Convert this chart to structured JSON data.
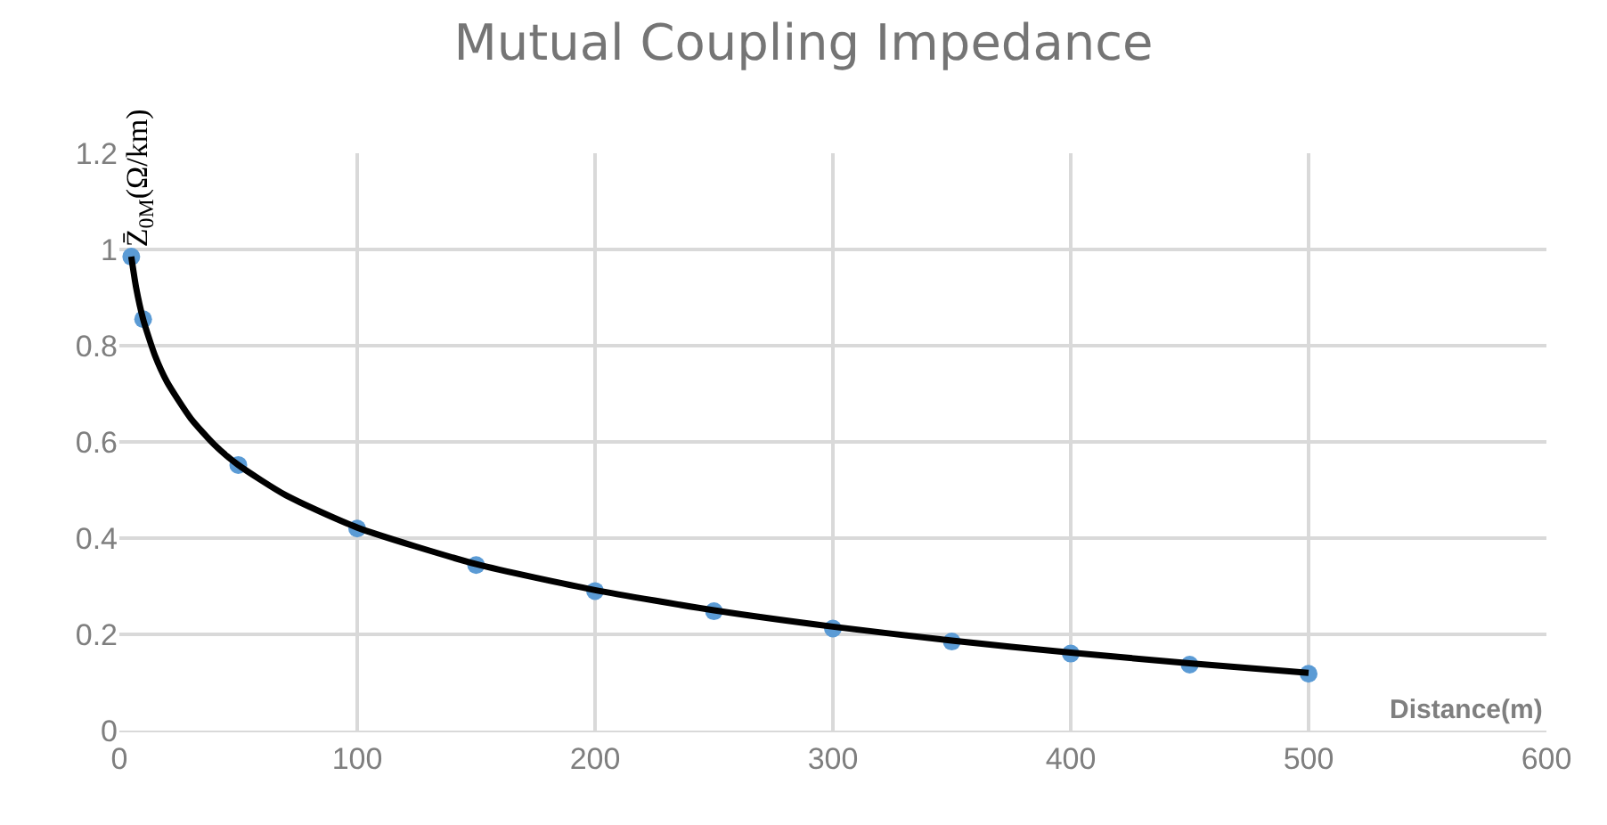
{
  "chart_data": {
    "type": "scatter",
    "title": "Mutual Coupling Impedance",
    "xlabel": "Distance(m)",
    "ylabel": "Z̄$_{0M}$(Ω/km)",
    "x": [
      5,
      10,
      50,
      100,
      150,
      200,
      250,
      300,
      350,
      400,
      450,
      500
    ],
    "series": [
      {
        "color": "#5b9bd5",
        "marker": "circle",
        "values": [
          0.985,
          0.855,
          0.552,
          0.42,
          0.344,
          0.29,
          0.248,
          0.212,
          0.185,
          0.16,
          0.137,
          0.118
        ]
      },
      {
        "type": "line",
        "color": "#000000",
        "marker": "none",
        "line_style": "solid",
        "x": [
          5,
          7,
          10,
          15,
          20,
          30,
          40,
          50,
          70,
          100,
          150,
          200,
          250,
          300,
          350,
          400,
          450,
          500
        ],
        "values": [
          0.985,
          0.922,
          0.855,
          0.779,
          0.725,
          0.649,
          0.594,
          0.552,
          0.489,
          0.422,
          0.346,
          0.292,
          0.25,
          0.216,
          0.187,
          0.162,
          0.14,
          0.12
        ]
      }
    ],
    "xlim": [
      0,
      600
    ],
    "xticks": [
      0,
      100,
      200,
      300,
      400,
      500,
      600
    ],
    "ylim": [
      0,
      1.2
    ],
    "yticks": [
      0,
      0.2,
      0.4,
      0.6,
      0.8,
      1,
      1.2
    ],
    "grid": true
  }
}
